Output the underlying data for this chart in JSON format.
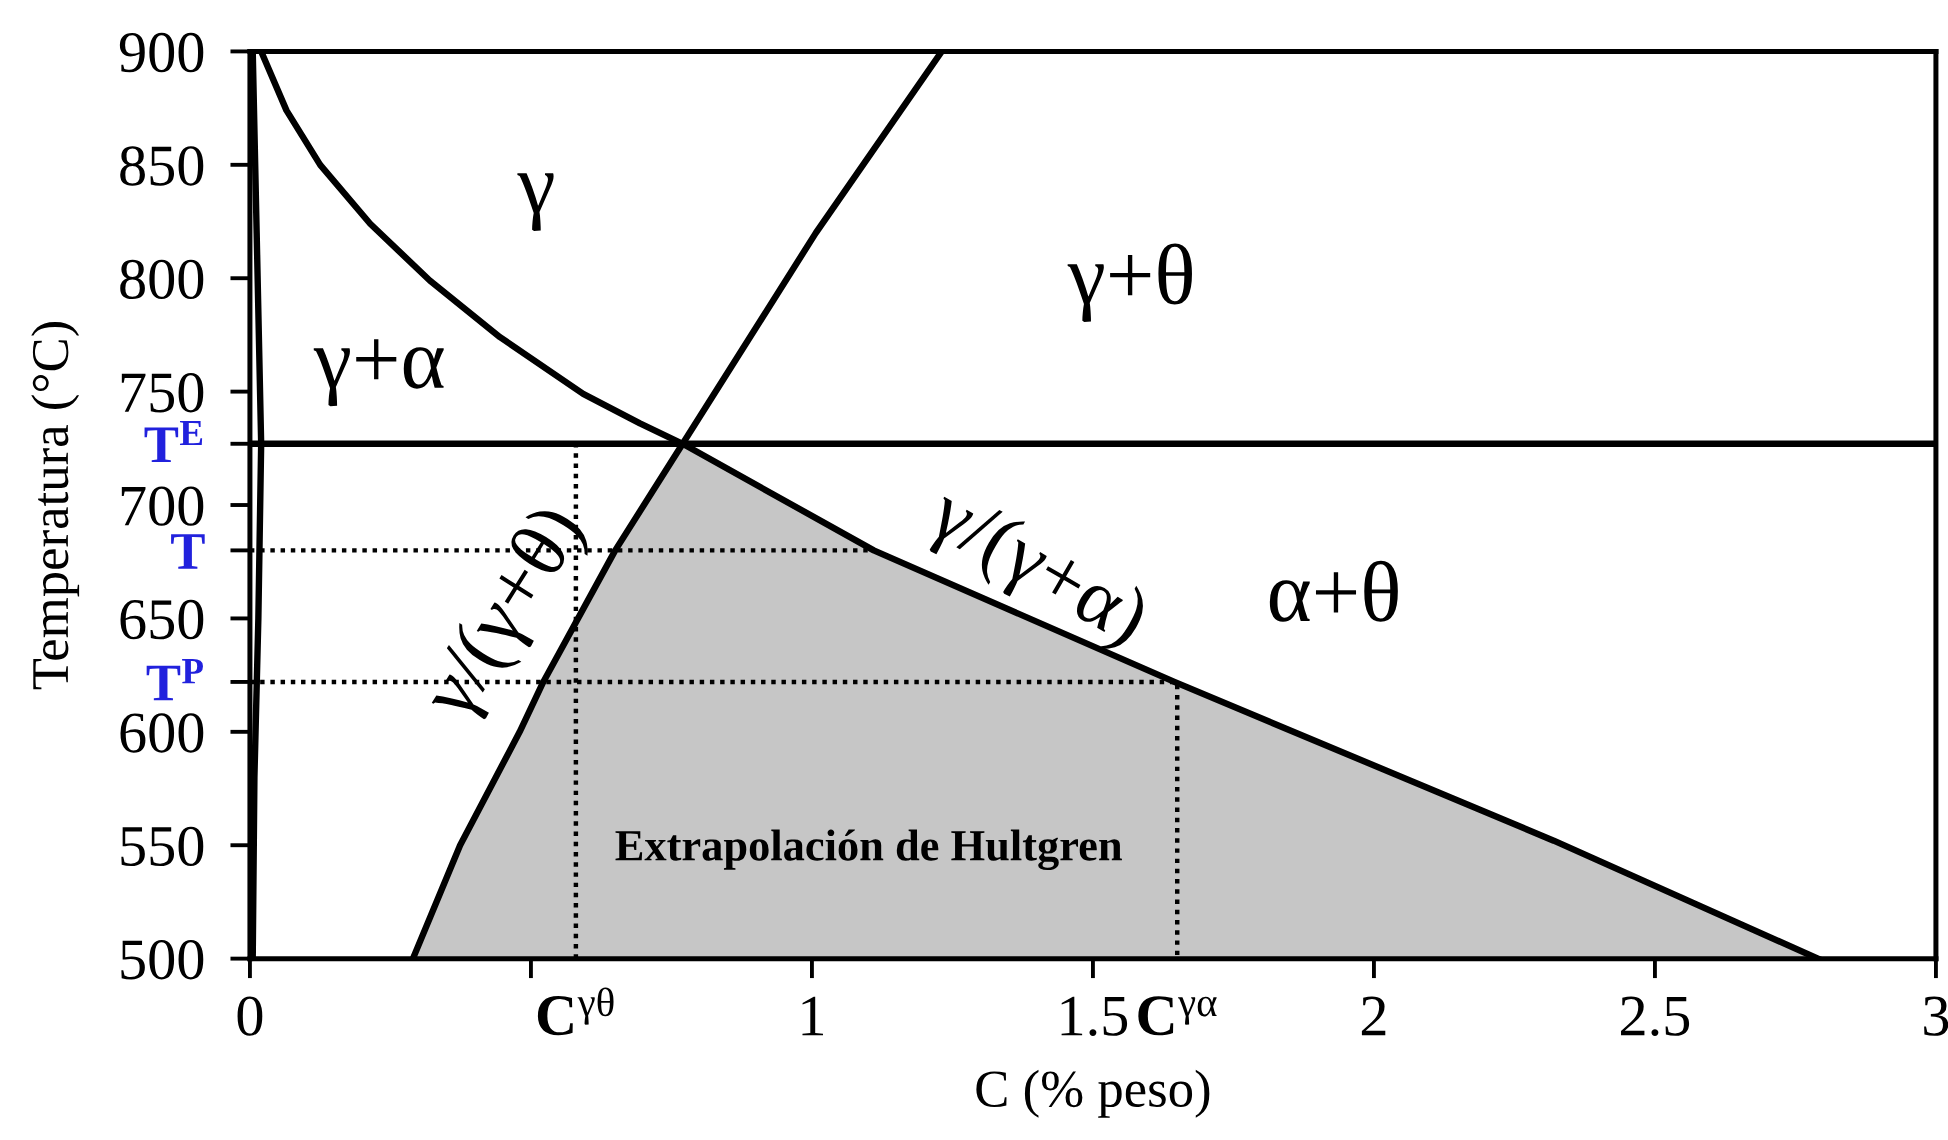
{
  "chart_data": {
    "type": "line",
    "xlabel": "C (% peso)",
    "ylabel": "Temperatura (°C)",
    "xlim": [
      0,
      3
    ],
    "ylim": [
      500,
      900
    ],
    "xticks": [
      0,
      {
        "value": 0.5,
        "label": null
      },
      {
        "value": 0.58,
        "label": "C$^{γθ}$"
      },
      1,
      1.5,
      {
        "value": 1.65,
        "label": "C$^{γα}$"
      },
      2,
      2.5,
      3
    ],
    "yticks": [
      500,
      550,
      600,
      {
        "value": 622,
        "label": "T$^{P}$"
      },
      650,
      {
        "value": 680,
        "label": "T"
      },
      700,
      {
        "value": 727,
        "label": "T$^{E}$"
      },
      750,
      800,
      850,
      900
    ],
    "series": [
      {
        "type": "area",
        "color": "#c6c6c6",
        "x": [
          0.29,
          0.374,
          0.48,
          0.522,
          0.65,
          0.77,
          1.11,
          1.645,
          2.32,
          2.79
        ],
        "values": [
          500,
          550,
          600,
          622,
          680,
          727,
          680,
          622,
          552,
          500
        ]
      },
      {
        "color": "#000000",
        "x": [
          0.29,
          0.374,
          0.48,
          0.522,
          0.65,
          0.77,
          1.007,
          1.231
        ],
        "values": [
          500,
          550,
          600,
          622,
          680,
          727,
          820,
          900
        ]
      },
      {
        "color": "#000000",
        "x": [
          0.02,
          0.065,
          0.125,
          0.214,
          0.32,
          0.445,
          0.593,
          0.694,
          0.77,
          1.11,
          1.645,
          2.32,
          2.79
        ],
        "values": [
          900,
          874,
          850,
          824,
          799,
          774,
          749,
          736,
          727,
          680,
          622,
          552,
          500
        ]
      },
      {
        "color": "#000000",
        "x": [
          0.005,
          0.012,
          0.02,
          0.015,
          0.008,
          0.005
        ],
        "values": [
          900,
          820,
          727,
          650,
          580,
          500
        ]
      },
      {
        "color": "#000000",
        "line_style": "dotted",
        "x": [
          0,
          1.11
        ],
        "values": [
          680,
          680
        ]
      },
      {
        "color": "#000000",
        "line_style": "dotted",
        "x": [
          0,
          1.65,
          1.65
        ],
        "values": [
          622,
          622,
          500
        ]
      },
      {
        "color": "#000000",
        "line_style": "dotted",
        "x": [
          0.58,
          0.58
        ],
        "values": [
          500,
          727
        ]
      }
    ],
    "ref_lines": [
      {
        "axis": "y",
        "value": 727,
        "color": "#000000",
        "line_style": "solid"
      }
    ],
    "annotations": [
      "γ",
      "γ+α",
      "γ+θ",
      "α+θ",
      "γ/(γ+θ)",
      "γ/(γ+α)",
      "Extrapolación de Hultgren"
    ]
  }
}
